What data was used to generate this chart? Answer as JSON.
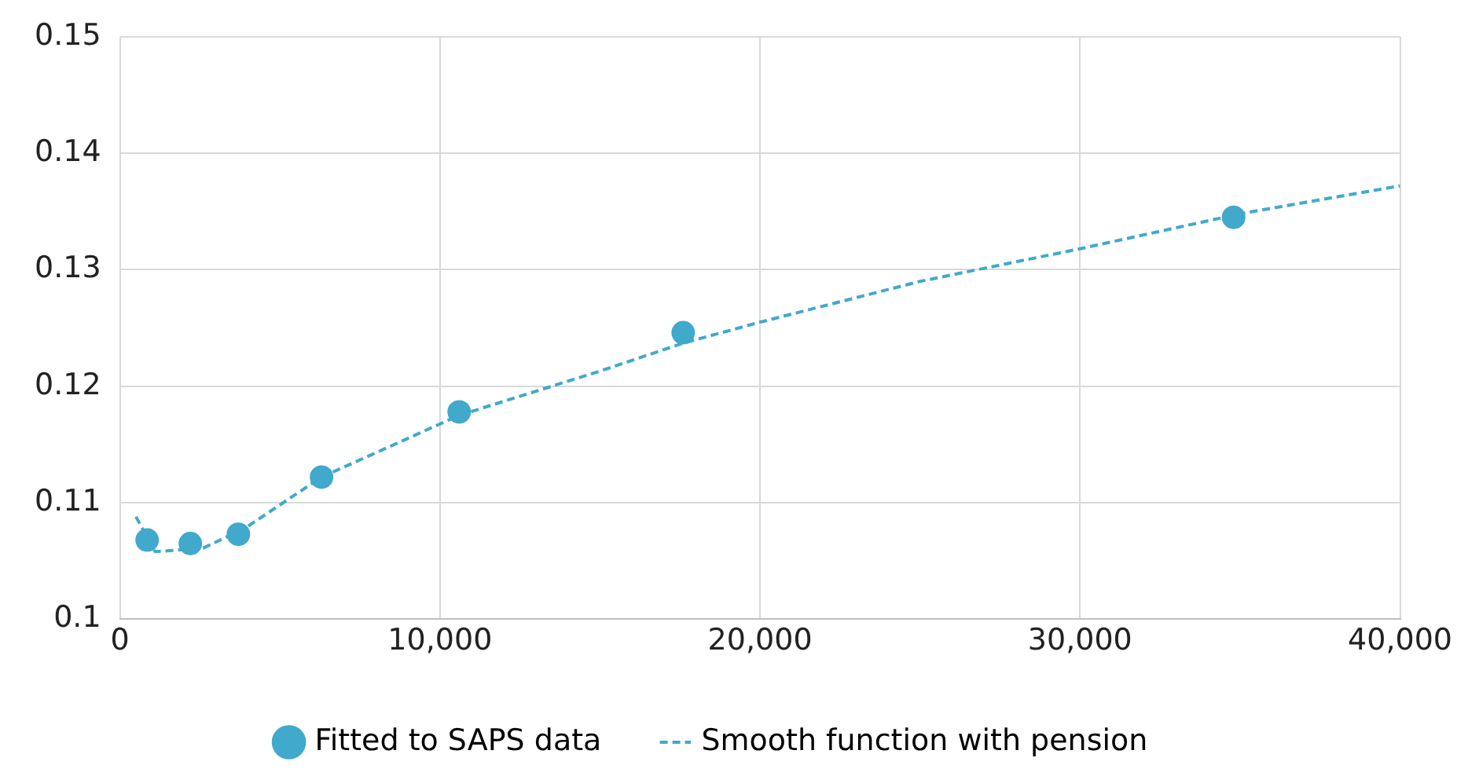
{
  "chart_data": {
    "type": "scatter",
    "xlim": [
      0,
      40000
    ],
    "ylim": [
      0.1,
      0.15
    ],
    "xticks": [
      0,
      {
        "value": 10000,
        "label": "10,000"
      },
      {
        "value": 20000,
        "label": "20,000"
      },
      {
        "value": 30000,
        "label": "30,000"
      },
      {
        "value": 40000,
        "label": "40,000"
      }
    ],
    "yticks": [
      0.1,
      0.11,
      0.12,
      0.13,
      0.14,
      0.15
    ],
    "grid": true,
    "legend": "bottom",
    "series": [
      {
        "name": "Fitted to SAPS data",
        "marker": "circle",
        "color": "#41a9cb",
        "x": [
          850,
          2200,
          3700,
          6300,
          10600,
          17600,
          34800
        ],
        "values": [
          0.1068,
          0.1065,
          0.1073,
          0.1122,
          0.1178,
          0.1246,
          0.1345
        ]
      },
      {
        "name": "Smooth function with pension",
        "type": "line",
        "marker": "none",
        "line_style": "dashed",
        "color": "#41a9cb",
        "x": [
          500,
          1100,
          2600,
          3900,
          6300,
          10600,
          15000,
          17600,
          20000,
          25000,
          30000,
          35000,
          40000
        ],
        "values": [
          0.1088,
          0.1058,
          0.1061,
          0.1078,
          0.1122,
          0.1175,
          0.1213,
          0.1237,
          0.1255,
          0.129,
          0.1318,
          0.1348,
          0.1372
        ]
      }
    ]
  }
}
